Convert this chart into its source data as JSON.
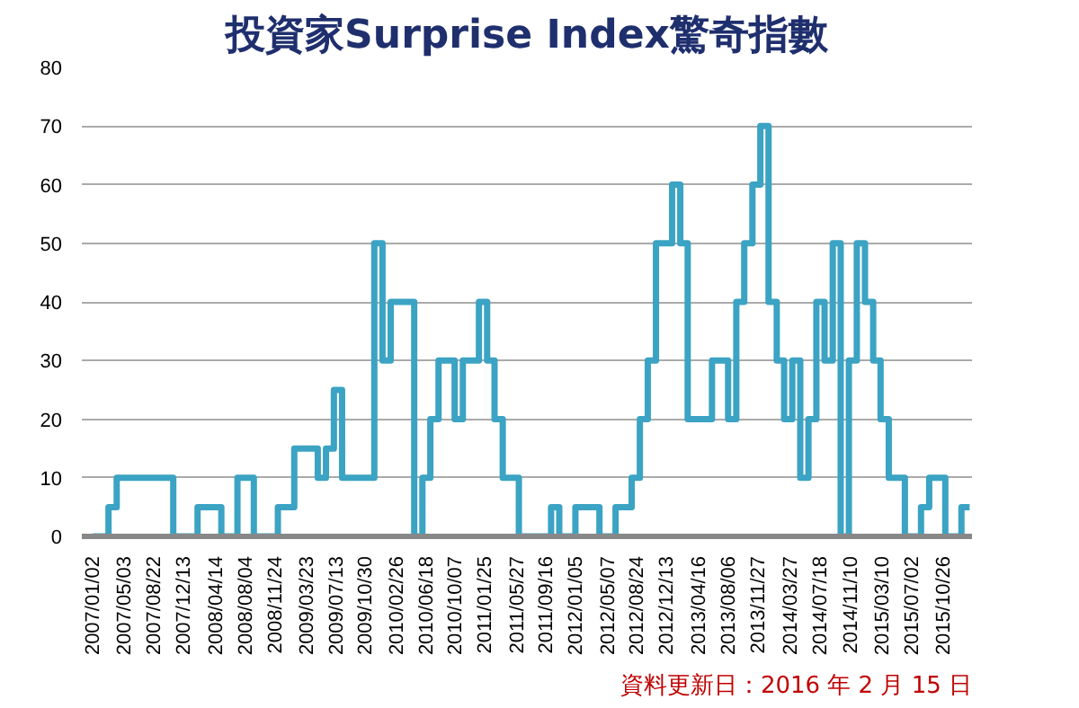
{
  "chart_data": {
    "type": "step",
    "title": "投資家Surprise Index驚奇指數",
    "annotations": [
      "資料更新日：2016 年 2 月 15 日"
    ],
    "x": [
      "2007-01",
      "2007-03",
      "2007-04",
      "2007-11",
      "2008-02",
      "2008-05",
      "2008-07",
      "2008-09",
      "2008-12",
      "2009-02",
      "2009-05",
      "2009-06",
      "2009-07",
      "2009-08",
      "2009-12",
      "2010-01",
      "2010-02",
      "2010-05",
      "2010-06",
      "2010-07",
      "2010-08",
      "2010-10",
      "2010-11",
      "2011-01",
      "2011-02",
      "2011-03",
      "2011-04",
      "2011-06",
      "2011-10",
      "2011-11",
      "2012-01",
      "2012-04",
      "2012-06",
      "2012-08",
      "2012-09",
      "2012-10",
      "2012-11",
      "2013-01",
      "2013-02",
      "2013-03",
      "2013-06",
      "2013-08",
      "2013-09",
      "2013-10",
      "2013-11",
      "2013-12",
      "2014-01",
      "2014-02",
      "2014-03",
      "2014-04",
      "2014-05",
      "2014-06",
      "2014-07",
      "2014-08",
      "2014-09",
      "2014-10",
      "2014-11",
      "2014-12",
      "2015-01",
      "2015-02",
      "2015-03",
      "2015-04",
      "2015-06",
      "2015-08",
      "2015-09",
      "2015-11",
      "2016-01",
      "2016-02"
    ],
    "series": [
      {
        "color": "#3ba3c3",
        "values": [
          0,
          5,
          10,
          0,
          5,
          0,
          10,
          0,
          5,
          15,
          10,
          15,
          25,
          10,
          50,
          30,
          40,
          0,
          10,
          20,
          30,
          20,
          30,
          40,
          30,
          20,
          10,
          0,
          5,
          0,
          5,
          0,
          5,
          10,
          20,
          30,
          50,
          60,
          50,
          20,
          30,
          20,
          40,
          50,
          60,
          70,
          40,
          30,
          20,
          30,
          10,
          20,
          40,
          30,
          50,
          0,
          30,
          50,
          40,
          30,
          20,
          10,
          0,
          5,
          10,
          0,
          5,
          5
        ]
      }
    ],
    "xlim": [
      "2006-11-20",
      "2016-02-10"
    ],
    "xticks": [
      {
        "value": "2007-01-02",
        "label": "2007/01/02"
      },
      {
        "value": "2007-05-03",
        "label": "2007/05/03"
      },
      {
        "value": "2007-08-22",
        "label": "2007/08/22"
      },
      {
        "value": "2007-12-13",
        "label": "2007/12/13"
      },
      {
        "value": "2008-04-14",
        "label": "2008/04/14"
      },
      {
        "value": "2008-08-04",
        "label": "2008/08/04"
      },
      {
        "value": "2008-11-24",
        "label": "2008/11/24"
      },
      {
        "value": "2009-03-23",
        "label": "2009/03/23"
      },
      {
        "value": "2009-07-13",
        "label": "2009/07/13"
      },
      {
        "value": "2009-10-30",
        "label": "2009/10/30"
      },
      {
        "value": "2010-02-26",
        "label": "2010/02/26"
      },
      {
        "value": "2010-06-18",
        "label": "2010/06/18"
      },
      {
        "value": "2010-10-07",
        "label": "2010/10/07"
      },
      {
        "value": "2011-01-25",
        "label": "2011/01/25"
      },
      {
        "value": "2011-05-27",
        "label": "2011/05/27"
      },
      {
        "value": "2011-09-16",
        "label": "2011/09/16"
      },
      {
        "value": "2012-01-05",
        "label": "2012/01/05"
      },
      {
        "value": "2012-05-07",
        "label": "2012/05/07"
      },
      {
        "value": "2012-08-24",
        "label": "2012/08/24"
      },
      {
        "value": "2012-12-13",
        "label": "2012/12/13"
      },
      {
        "value": "2013-04-16",
        "label": "2013/04/16"
      },
      {
        "value": "2013-08-06",
        "label": "2013/08/06"
      },
      {
        "value": "2013-11-27",
        "label": "2013/11/27"
      },
      {
        "value": "2014-03-27",
        "label": "2014/03/27"
      },
      {
        "value": "2014-07-18",
        "label": "2014/07/18"
      },
      {
        "value": "2014-11-10",
        "label": "2014/11/10"
      },
      {
        "value": "2015-03-10",
        "label": "2015/03/10"
      },
      {
        "value": "2015-07-02",
        "label": "2015/07/02"
      },
      {
        "value": "2015-10-26",
        "label": "2015/10/26"
      }
    ],
    "ylim": [
      0,
      80
    ],
    "yticks": [
      0,
      10,
      20,
      30,
      40,
      50,
      60,
      70,
      80
    ],
    "grid": "y"
  }
}
